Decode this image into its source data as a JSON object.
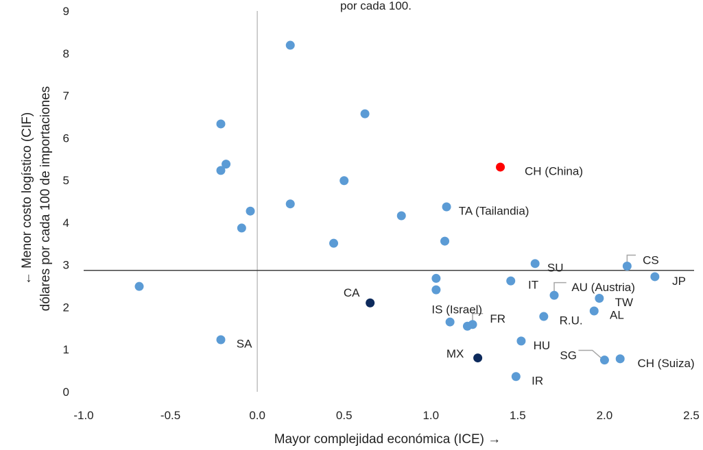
{
  "chart_data": {
    "type": "scatter",
    "title": "por cada 100.",
    "xlabel": "Mayor complejidad económica (ICE) →",
    "ylabel_line1": "← Menor costo logístico (CIF)",
    "ylabel_line2": "dólares por cada 100 de importaciones",
    "xlim": [
      -1.0,
      2.5
    ],
    "ylim": [
      0,
      9
    ],
    "x_ticks": [
      "-1.0",
      "-0.5",
      "0.0",
      "0.5",
      "1.0",
      "1.5",
      "2.0",
      "2.5"
    ],
    "y_ticks": [
      "0",
      "1",
      "2",
      "3",
      "4",
      "5",
      "6",
      "7",
      "8",
      "9"
    ],
    "reference_lines": {
      "x": 0.0,
      "y": 2.87
    },
    "grid": false,
    "colors": {
      "default": "#5b9bd5",
      "highlight": "#ff0000",
      "dark": "#0d2a5c",
      "vline": "#bfbfbf",
      "hline": "#404040",
      "leader": "#a6a6a6"
    },
    "points": [
      {
        "x": 0.19,
        "y": 8.19,
        "label": "",
        "color": "default"
      },
      {
        "x": 0.62,
        "y": 6.57,
        "label": "",
        "color": "default"
      },
      {
        "x": -0.21,
        "y": 6.33,
        "label": "",
        "color": "default"
      },
      {
        "x": -0.18,
        "y": 5.38,
        "label": "",
        "color": "default"
      },
      {
        "x": -0.21,
        "y": 5.23,
        "label": "",
        "color": "default"
      },
      {
        "x": 1.4,
        "y": 5.31,
        "label": "CH (China)",
        "color": "highlight",
        "lx": 1.54,
        "ly": 5.22,
        "anchor": "start"
      },
      {
        "x": 0.5,
        "y": 4.99,
        "label": "",
        "color": "default"
      },
      {
        "x": 0.19,
        "y": 4.44,
        "label": "",
        "color": "default"
      },
      {
        "x": -0.04,
        "y": 4.27,
        "label": "",
        "color": "default"
      },
      {
        "x": 1.09,
        "y": 4.37,
        "label": "TA (Tailandia)",
        "color": "default",
        "lx": 1.16,
        "ly": 4.28,
        "anchor": "start"
      },
      {
        "x": 0.83,
        "y": 4.16,
        "label": "",
        "color": "default"
      },
      {
        "x": -0.09,
        "y": 3.87,
        "label": "",
        "color": "default"
      },
      {
        "x": 1.08,
        "y": 3.56,
        "label": "",
        "color": "default"
      },
      {
        "x": 0.44,
        "y": 3.51,
        "label": "",
        "color": "default"
      },
      {
        "x": 1.6,
        "y": 3.03,
        "label": "SU",
        "color": "default",
        "lx": 1.67,
        "ly": 2.94,
        "anchor": "start"
      },
      {
        "x": 2.13,
        "y": 2.97,
        "label": "CS",
        "color": "default",
        "lx": 2.22,
        "ly": 3.12,
        "anchor": "start",
        "leader": [
          [
            2.13,
            3.03
          ],
          [
            2.13,
            3.23
          ],
          [
            2.18,
            3.23
          ]
        ]
      },
      {
        "x": 2.29,
        "y": 2.72,
        "label": "JP",
        "color": "default",
        "lx": 2.39,
        "ly": 2.62,
        "anchor": "start"
      },
      {
        "x": -0.68,
        "y": 2.49,
        "label": "",
        "color": "default"
      },
      {
        "x": 1.03,
        "y": 2.68,
        "label": "",
        "color": "default"
      },
      {
        "x": 1.46,
        "y": 2.62,
        "label": "IT",
        "color": "default",
        "lx": 1.56,
        "ly": 2.53,
        "anchor": "start"
      },
      {
        "x": 1.03,
        "y": 2.41,
        "label": "",
        "color": "default"
      },
      {
        "x": 1.71,
        "y": 2.28,
        "label": "AU (Austria)",
        "color": "default",
        "lx": 1.81,
        "ly": 2.48,
        "anchor": "start",
        "leader": [
          [
            1.71,
            2.34
          ],
          [
            1.71,
            2.58
          ],
          [
            1.78,
            2.58
          ]
        ]
      },
      {
        "x": 1.97,
        "y": 2.21,
        "label": "TW",
        "color": "default",
        "lx": 2.06,
        "ly": 2.12,
        "anchor": "start"
      },
      {
        "x": 0.65,
        "y": 2.1,
        "label": "CA",
        "color": "dark",
        "lx": 0.59,
        "ly": 2.35,
        "anchor": "end"
      },
      {
        "x": 1.94,
        "y": 1.91,
        "label": "AL",
        "color": "default",
        "lx": 2.03,
        "ly": 1.82,
        "anchor": "start"
      },
      {
        "x": 1.65,
        "y": 1.78,
        "label": "R.U.",
        "color": "default",
        "lx": 1.74,
        "ly": 1.69,
        "anchor": "start"
      },
      {
        "x": 1.11,
        "y": 1.65,
        "label": "IS (Israel)",
        "color": "default",
        "lx": 1.15,
        "ly": 1.95,
        "anchor": "middle"
      },
      {
        "x": 1.21,
        "y": 1.55,
        "label": "",
        "color": "default"
      },
      {
        "x": 1.24,
        "y": 1.59,
        "label": "FR",
        "color": "default",
        "lx": 1.34,
        "ly": 1.73,
        "anchor": "start",
        "leader": [
          [
            1.24,
            1.65
          ],
          [
            1.24,
            1.85
          ],
          [
            1.3,
            1.85
          ]
        ]
      },
      {
        "x": -0.21,
        "y": 1.23,
        "label": "SA",
        "color": "default",
        "lx": -0.12,
        "ly": 1.14,
        "anchor": "start"
      },
      {
        "x": 1.52,
        "y": 1.2,
        "label": "HU",
        "color": "default",
        "lx": 1.59,
        "ly": 1.1,
        "anchor": "start"
      },
      {
        "x": 2.0,
        "y": 0.75,
        "label": "SG",
        "color": "default",
        "lx": 1.84,
        "ly": 0.87,
        "anchor": "end",
        "leader": [
          [
            1.85,
            0.98
          ],
          [
            1.93,
            0.98
          ],
          [
            1.98,
            0.8
          ]
        ]
      },
      {
        "x": 2.09,
        "y": 0.78,
        "label": "CH (Suiza)",
        "color": "default",
        "lx": 2.19,
        "ly": 0.68,
        "anchor": "start"
      },
      {
        "x": 1.27,
        "y": 0.8,
        "label": "MX",
        "color": "dark",
        "lx": 1.19,
        "ly": 0.91,
        "anchor": "end"
      },
      {
        "x": 1.49,
        "y": 0.36,
        "label": "IR",
        "color": "default",
        "lx": 1.58,
        "ly": 0.27,
        "anchor": "start"
      }
    ]
  }
}
